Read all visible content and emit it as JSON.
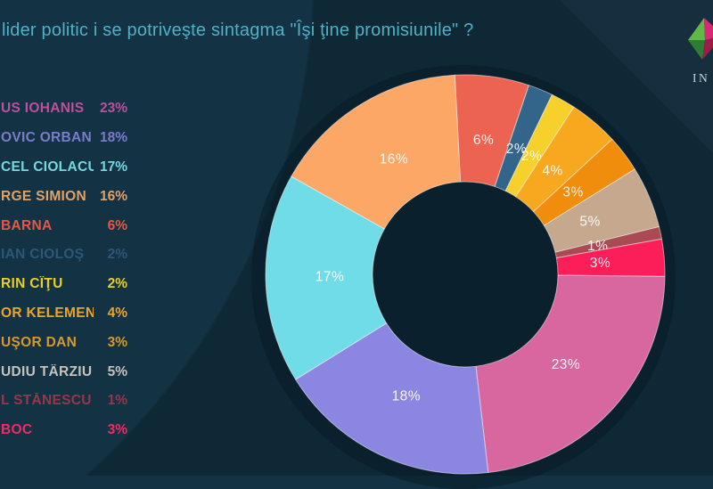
{
  "title": "lider politic i se potriveşte sintagma \"Îşi ţine promisiunile\" ?",
  "logo": {
    "brand_text": "IN",
    "colors": {
      "green": "#5eb946",
      "dark_green": "#2e7d36",
      "pink": "#d62a74",
      "dark_red": "#9b1c44"
    }
  },
  "colors": {
    "background": "#133243",
    "background_dark": "#0f2b3a",
    "title": "#4fb1c6",
    "slice_border": "rgba(255,255,255,0.5)",
    "slice_label": "rgba(255,255,255,0.92)"
  },
  "chart_data": {
    "type": "pie",
    "donut": true,
    "unit": "%",
    "title": "lider politic i se potriveşte sintagma \"Îşi ţine promisiunile\" ?",
    "start_angle_deg": -3,
    "direction": "clockwise",
    "legend_position": "left",
    "slices": [
      {
        "legend_label": "BARNA",
        "value": 6,
        "slice_color": "#ed6351",
        "legend_color": "#e25948"
      },
      {
        "legend_label": "IAN CIOLOŞ",
        "value": 2,
        "slice_color": "#33658a",
        "legend_color": "#2c5878"
      },
      {
        "legend_label": "RIN CÎŢU",
        "value": 2,
        "slice_color": "#f6d02b",
        "legend_color": "#e8cf2c"
      },
      {
        "legend_label": "OR KELEMEN",
        "value": 4,
        "slice_color": "#f8a81e",
        "legend_color": "#eaa62a"
      },
      {
        "legend_label": "UŞOR DAN",
        "value": 3,
        "slice_color": "#f18d0d",
        "legend_color": "#d9992a"
      },
      {
        "legend_label": "UDIU TÂRZIU",
        "value": 5,
        "slice_color": "#c5a88e",
        "legend_color": "#c6c3bd"
      },
      {
        "legend_label": "L STĂNESCU",
        "value": 1,
        "slice_color": "#aa4a52",
        "legend_color": "#94394a"
      },
      {
        "legend_label": "BOC",
        "value": 3,
        "slice_color": "#fc1e58",
        "legend_color": "#ee2d64"
      },
      {
        "legend_label": "US IOHANIS",
        "value": 23,
        "slice_color": "#d8679f",
        "legend_color": "#b9529b"
      },
      {
        "legend_label": "OVIC ORBAN",
        "value": 18,
        "slice_color": "#8c86e3",
        "legend_color": "#7b7ccc"
      },
      {
        "legend_label": "CEL CIOLACU",
        "value": 17,
        "slice_color": "#70dce7",
        "legend_color": "#74d8e1"
      },
      {
        "legend_label": "RGE SIMION",
        "value": 16,
        "slice_color": "#fca765",
        "legend_color": "#e1a26a"
      }
    ],
    "legend_display_order": [
      8,
      9,
      10,
      11,
      0,
      1,
      2,
      3,
      4,
      5,
      6,
      7
    ]
  }
}
